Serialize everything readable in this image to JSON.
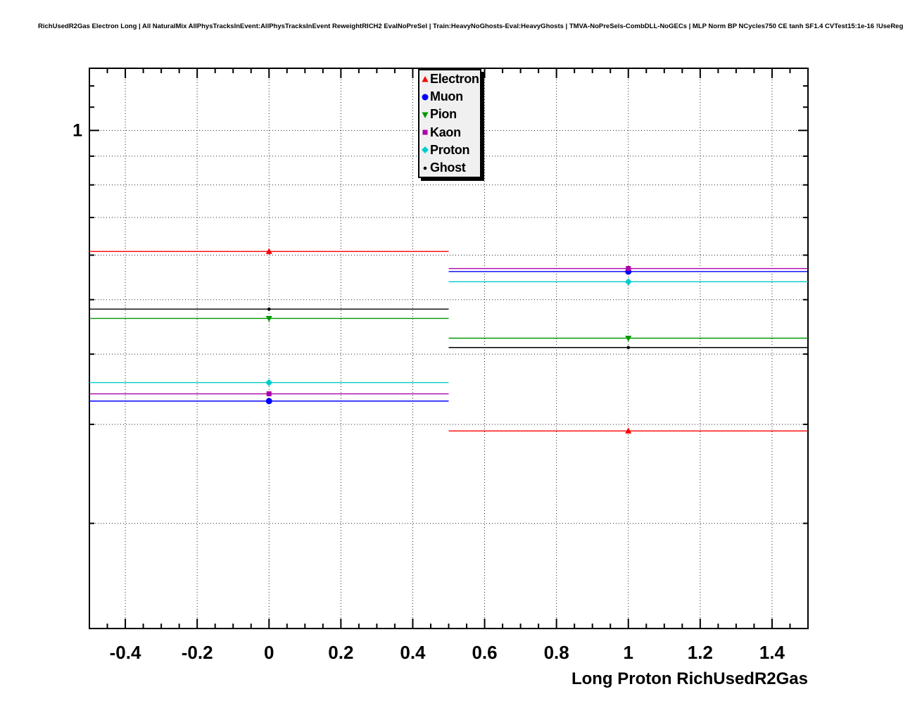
{
  "chart_data": {
    "type": "scatter",
    "title": "RichUsedR2Gas Electron Long | All NaturalMix AllPhysTracksInEvent:AllPhysTracksInEvent ReweightRICH2 EvalNoPreSel | Train:HeavyNoGhosts-Eval:HeavyGhosts | TMVA-NoPreSels-CombDLL-NoGECs | MLP Norm BP NCycles750 CE tanh SF1.4 CVTest15:1e-16 !UseReg",
    "xlabel": "Long Proton RichUsedR2Gas",
    "ylabel": "",
    "grid": true,
    "x_axis": {
      "lim": [
        -0.5,
        1.5
      ],
      "tick_values": [
        -0.4,
        -0.2,
        0,
        0.2,
        0.4,
        0.6,
        0.8,
        1,
        1.2,
        1.4
      ],
      "tick_labels": [
        "-0.4",
        "-0.2",
        "0",
        "0.2",
        "0.4",
        "0.6",
        "0.8",
        "1",
        "1.2",
        "1.4"
      ],
      "minor_step": 0.05
    },
    "y_axis": {
      "scale": "log",
      "lim": [
        0.13,
        1.29
      ],
      "major_ticks": [
        1
      ],
      "major_tick_labels": [
        "1"
      ],
      "minor_ticks": [
        0.2,
        0.3,
        0.4,
        0.5,
        0.6,
        0.7,
        0.8,
        0.9,
        1.1,
        1.2
      ],
      "gridlines": [
        0.2,
        0.3,
        0.4,
        0.5,
        0.6,
        0.7,
        0.8,
        0.9,
        1.0
      ]
    },
    "legend": {
      "position": "top-center",
      "entries": [
        {
          "label": "Electron",
          "marker": "triangle-up",
          "color": "#ff0000"
        },
        {
          "label": "Muon",
          "marker": "circle",
          "color": "#0000ff"
        },
        {
          "label": "Pion",
          "marker": "triangle-down",
          "color": "#009900"
        },
        {
          "label": "Kaon",
          "marker": "square",
          "color": "#aa00aa"
        },
        {
          "label": "Proton",
          "marker": "diamond",
          "color": "#00cccc"
        },
        {
          "label": "Ghost",
          "marker": "dot",
          "color": "#000000"
        }
      ]
    },
    "series": [
      {
        "name": "Electron",
        "color": "#ff0000",
        "marker": "triangle-up",
        "points": [
          {
            "x": 0,
            "xlow": -0.5,
            "xhigh": 0.5,
            "y": 0.609
          },
          {
            "x": 1,
            "xlow": 0.5,
            "xhigh": 1.5,
            "y": 0.292
          }
        ]
      },
      {
        "name": "Muon",
        "color": "#0000ff",
        "marker": "circle",
        "points": [
          {
            "x": 0,
            "xlow": -0.5,
            "xhigh": 0.5,
            "y": 0.33
          },
          {
            "x": 1,
            "xlow": 0.5,
            "xhigh": 1.5,
            "y": 0.561
          }
        ]
      },
      {
        "name": "Pion",
        "color": "#009900",
        "marker": "triangle-down",
        "points": [
          {
            "x": 0,
            "xlow": -0.5,
            "xhigh": 0.5,
            "y": 0.463
          },
          {
            "x": 1,
            "xlow": 0.5,
            "xhigh": 1.5,
            "y": 0.427
          }
        ]
      },
      {
        "name": "Kaon",
        "color": "#aa00aa",
        "marker": "square",
        "points": [
          {
            "x": 0,
            "xlow": -0.5,
            "xhigh": 0.5,
            "y": 0.34
          },
          {
            "x": 1,
            "xlow": 0.5,
            "xhigh": 1.5,
            "y": 0.568
          }
        ]
      },
      {
        "name": "Proton",
        "color": "#00cccc",
        "marker": "diamond",
        "points": [
          {
            "x": 0,
            "xlow": -0.5,
            "xhigh": 0.5,
            "y": 0.356
          },
          {
            "x": 1,
            "xlow": 0.5,
            "xhigh": 1.5,
            "y": 0.538
          }
        ]
      },
      {
        "name": "Ghost",
        "color": "#000000",
        "marker": "dot",
        "points": [
          {
            "x": 0,
            "xlow": -0.5,
            "xhigh": 0.5,
            "y": 0.481
          },
          {
            "x": 1,
            "xlow": 0.5,
            "xhigh": 1.5,
            "y": 0.411
          }
        ]
      }
    ]
  }
}
